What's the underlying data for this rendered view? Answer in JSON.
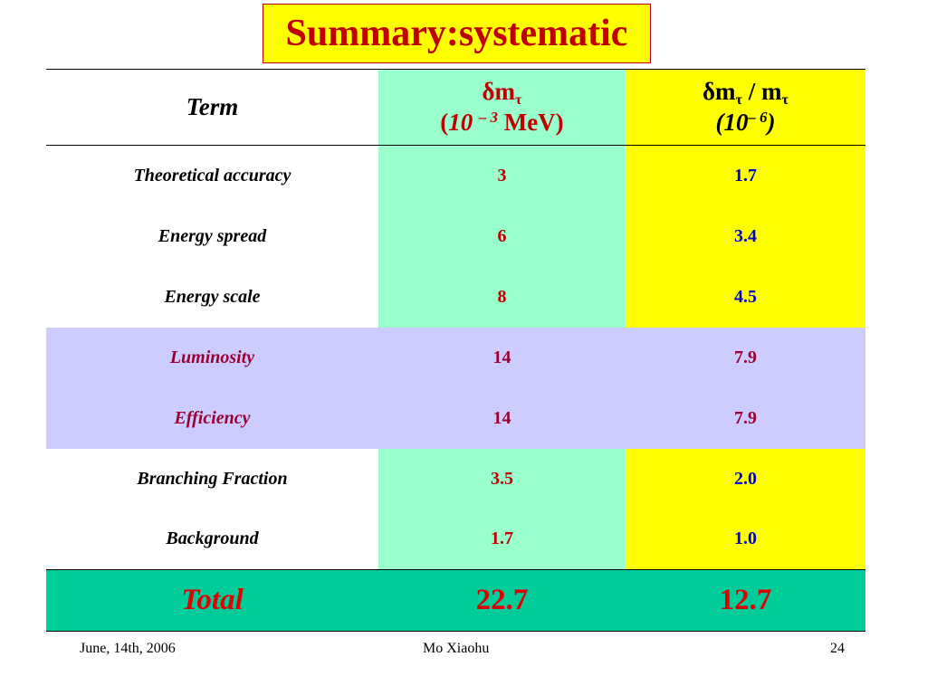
{
  "title": "Summary:systematic",
  "table": {
    "headers": {
      "term": "Term",
      "dm": {
        "symbol": "δm",
        "sub": "τ",
        "open": "(",
        "base": "10",
        "exp": "– 3",
        "unit": "MeV)"
      },
      "rel": {
        "symbol": "δm",
        "sub": "τ",
        "slash": " / m",
        "sub2": "τ",
        "open": "(",
        "base": "10",
        "exp": "– 6",
        "close": ")"
      }
    },
    "rows": [
      {
        "term": "Theoretical accuracy",
        "dm": "3",
        "rel": "1.7"
      },
      {
        "term": "Energy spread",
        "dm": "6",
        "rel": "3.4"
      },
      {
        "term": "Energy scale",
        "dm": "8",
        "rel": "4.5"
      },
      {
        "term": "Luminosity",
        "dm": "14",
        "rel": "7.9"
      },
      {
        "term": "Efficiency",
        "dm": "14",
        "rel": "7.9"
      },
      {
        "term": "Branching Fraction",
        "dm": "3.5",
        "rel": "2.0"
      },
      {
        "term": "Background",
        "dm": "1.7",
        "rel": "1.0"
      }
    ],
    "total": {
      "term": "Total",
      "dm": "22.7",
      "rel": "12.7"
    }
  },
  "colors": {
    "title_bg": "#ffff00",
    "title_text": "#c00000",
    "dm_column_bg": "#99ffcc",
    "rel_column_bg": "#ffff00",
    "highlight_row_bg": "#ccccff",
    "total_row_bg": "#00cc99"
  },
  "footer": {
    "date": "June, 14th, 2006",
    "author": "Mo Xiaohu",
    "page": "24"
  }
}
